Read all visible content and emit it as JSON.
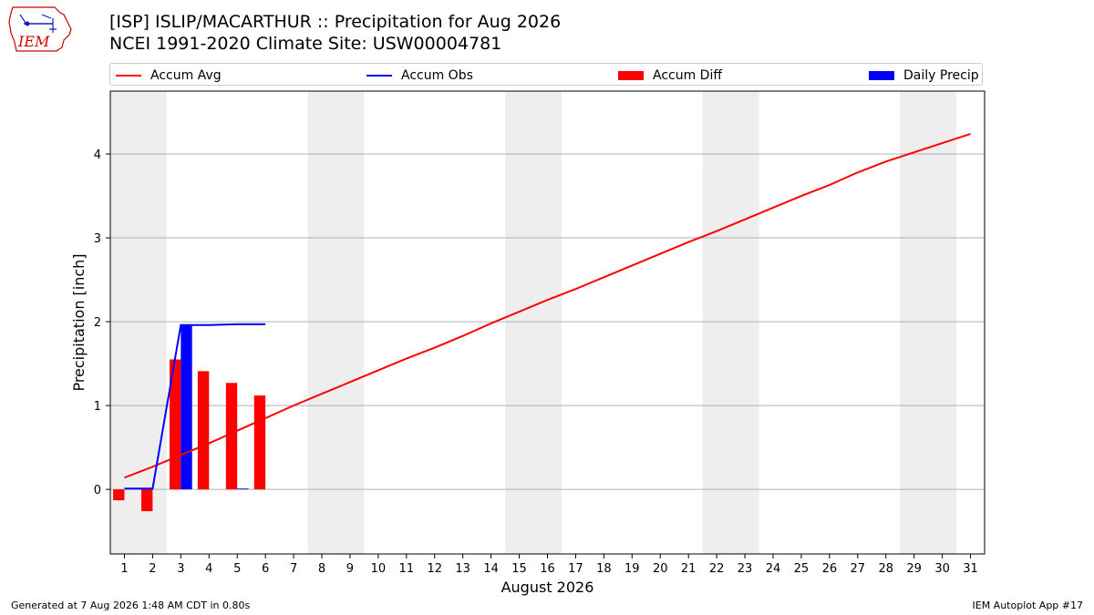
{
  "header": {
    "title_line1": "[ISP] ISLIP/MACARTHUR :: Precipitation for Aug 2026",
    "title_line2": "NCEI 1991-2020 Climate Site: USW00004781"
  },
  "logo": {
    "text": "IEM",
    "color": "#cc0000"
  },
  "legend": {
    "accum_avg": "Accum Avg",
    "accum_obs": "Accum Obs",
    "accum_diff": "Accum Diff",
    "daily_precip": "Daily Precip"
  },
  "footer": {
    "generated": "Generated at 7 Aug 2026 1:48 AM CDT in 0.80s",
    "app": "IEM Autoplot App #17"
  },
  "chart_data": {
    "type": "bar",
    "xlabel": "August 2026",
    "ylabel": "Precipitation [inch]",
    "xlim": [
      0.5,
      31.5
    ],
    "ylim": [
      -0.77,
      4.75
    ],
    "yticks": [
      0,
      1,
      2,
      3,
      4
    ],
    "xticks": [
      1,
      2,
      3,
      4,
      5,
      6,
      7,
      8,
      9,
      10,
      11,
      12,
      13,
      14,
      15,
      16,
      17,
      18,
      19,
      20,
      21,
      22,
      23,
      24,
      25,
      26,
      27,
      28,
      29,
      30,
      31
    ],
    "grid": "horizontal",
    "weekend_days": [
      1,
      2,
      8,
      9,
      15,
      16,
      22,
      23,
      29,
      30
    ],
    "colors": {
      "avg": "#ff0000",
      "obs": "#0000ff",
      "diff": "#ff0000",
      "daily": "#0000ff",
      "weekend": "#eeeeee"
    },
    "series": [
      {
        "name": "Accum Avg",
        "kind": "line",
        "x": [
          1,
          2,
          3,
          4,
          5,
          6,
          7,
          8,
          9,
          10,
          11,
          12,
          13,
          14,
          15,
          16,
          17,
          18,
          19,
          20,
          21,
          22,
          23,
          24,
          25,
          26,
          27,
          28,
          29,
          30,
          31
        ],
        "values": [
          0.14,
          0.27,
          0.41,
          0.55,
          0.7,
          0.85,
          1.0,
          1.14,
          1.28,
          1.42,
          1.56,
          1.69,
          1.83,
          1.98,
          2.12,
          2.26,
          2.39,
          2.53,
          2.67,
          2.81,
          2.95,
          3.08,
          3.22,
          3.36,
          3.5,
          3.63,
          3.78,
          3.91,
          4.02,
          4.13,
          4.24
        ]
      },
      {
        "name": "Accum Obs",
        "kind": "line",
        "x": [
          1,
          2,
          3,
          4,
          5,
          6
        ],
        "values": [
          0.01,
          0.01,
          1.96,
          1.96,
          1.97,
          1.97
        ]
      },
      {
        "name": "Accum Diff",
        "kind": "bar",
        "x": [
          1,
          2,
          3,
          4,
          5,
          6
        ],
        "values": [
          -0.13,
          -0.26,
          1.55,
          1.41,
          1.27,
          1.12
        ]
      },
      {
        "name": "Daily Precip",
        "kind": "bar",
        "x": [
          1,
          2,
          3,
          4,
          5,
          6
        ],
        "values": [
          0.0,
          0.0,
          1.95,
          0.0,
          0.01,
          0.0
        ]
      }
    ]
  }
}
